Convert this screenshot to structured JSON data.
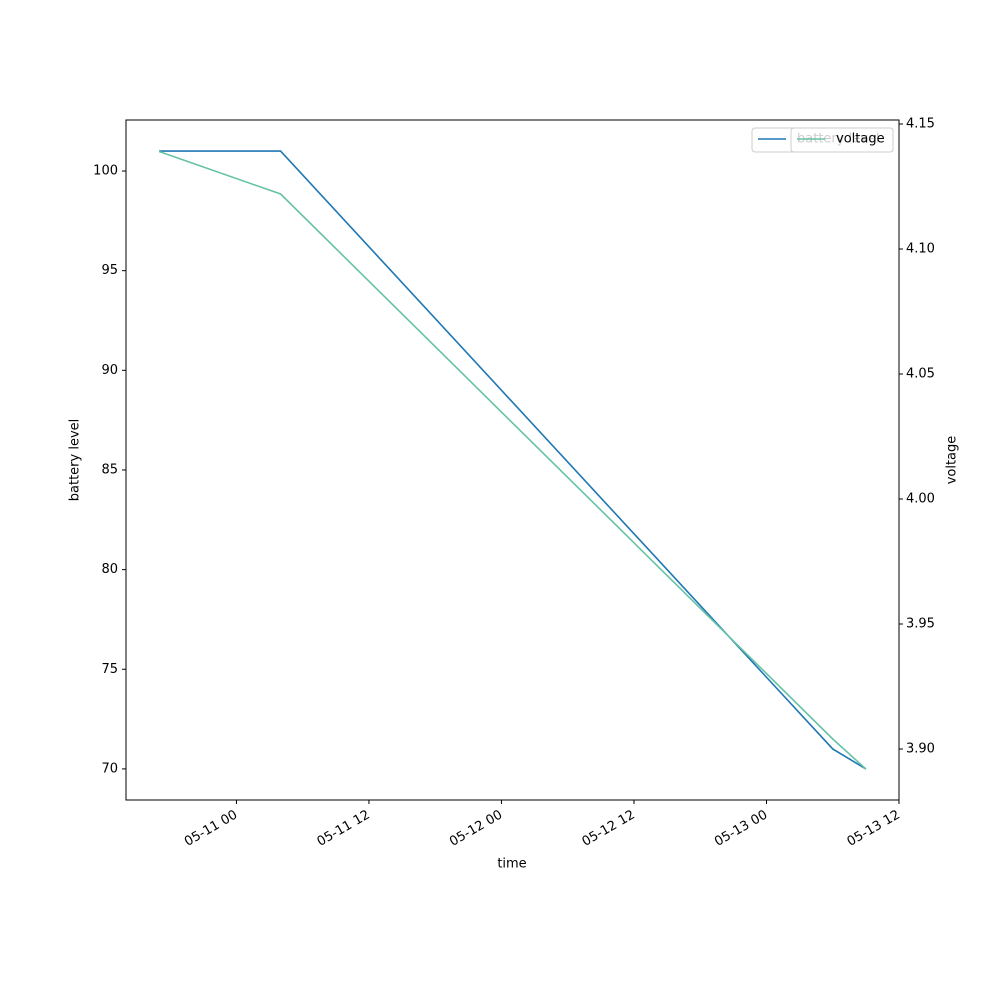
{
  "chart_data": {
    "type": "line",
    "x_label": "time",
    "y_label": "battery level",
    "y2_label": "voltage",
    "x": [
      "05-10 17",
      "05-11 04",
      "05-13 06",
      "05-13 09"
    ],
    "xlim": [
      "05-10 14",
      "05-13 12"
    ],
    "xticks": [
      "05-11 00",
      "05-11 12",
      "05-12 00",
      "05-12 12",
      "05-13 00",
      "05-13 12"
    ],
    "ylim": [
      68.44,
      102.56
    ],
    "yticks": [
      70,
      75,
      80,
      85,
      90,
      95,
      100
    ],
    "y2lim": [
      3.8796,
      4.1516
    ],
    "y2ticks": [
      {
        "value": 3.9,
        "label": "3.90"
      },
      3.95,
      {
        "value": 4.0,
        "label": "4.00"
      },
      4.05,
      {
        "value": 4.1,
        "label": "4.10"
      },
      4.15
    ],
    "series": [
      {
        "name": "battery level",
        "color": "#1f77b4",
        "values": [
          101,
          101,
          71,
          70
        ]
      },
      {
        "name": "voltage",
        "color": "#66c2a5",
        "axis": "y2",
        "values": [
          4.139,
          4.122,
          3.904,
          3.892
        ]
      }
    ],
    "legend": "upper right"
  }
}
